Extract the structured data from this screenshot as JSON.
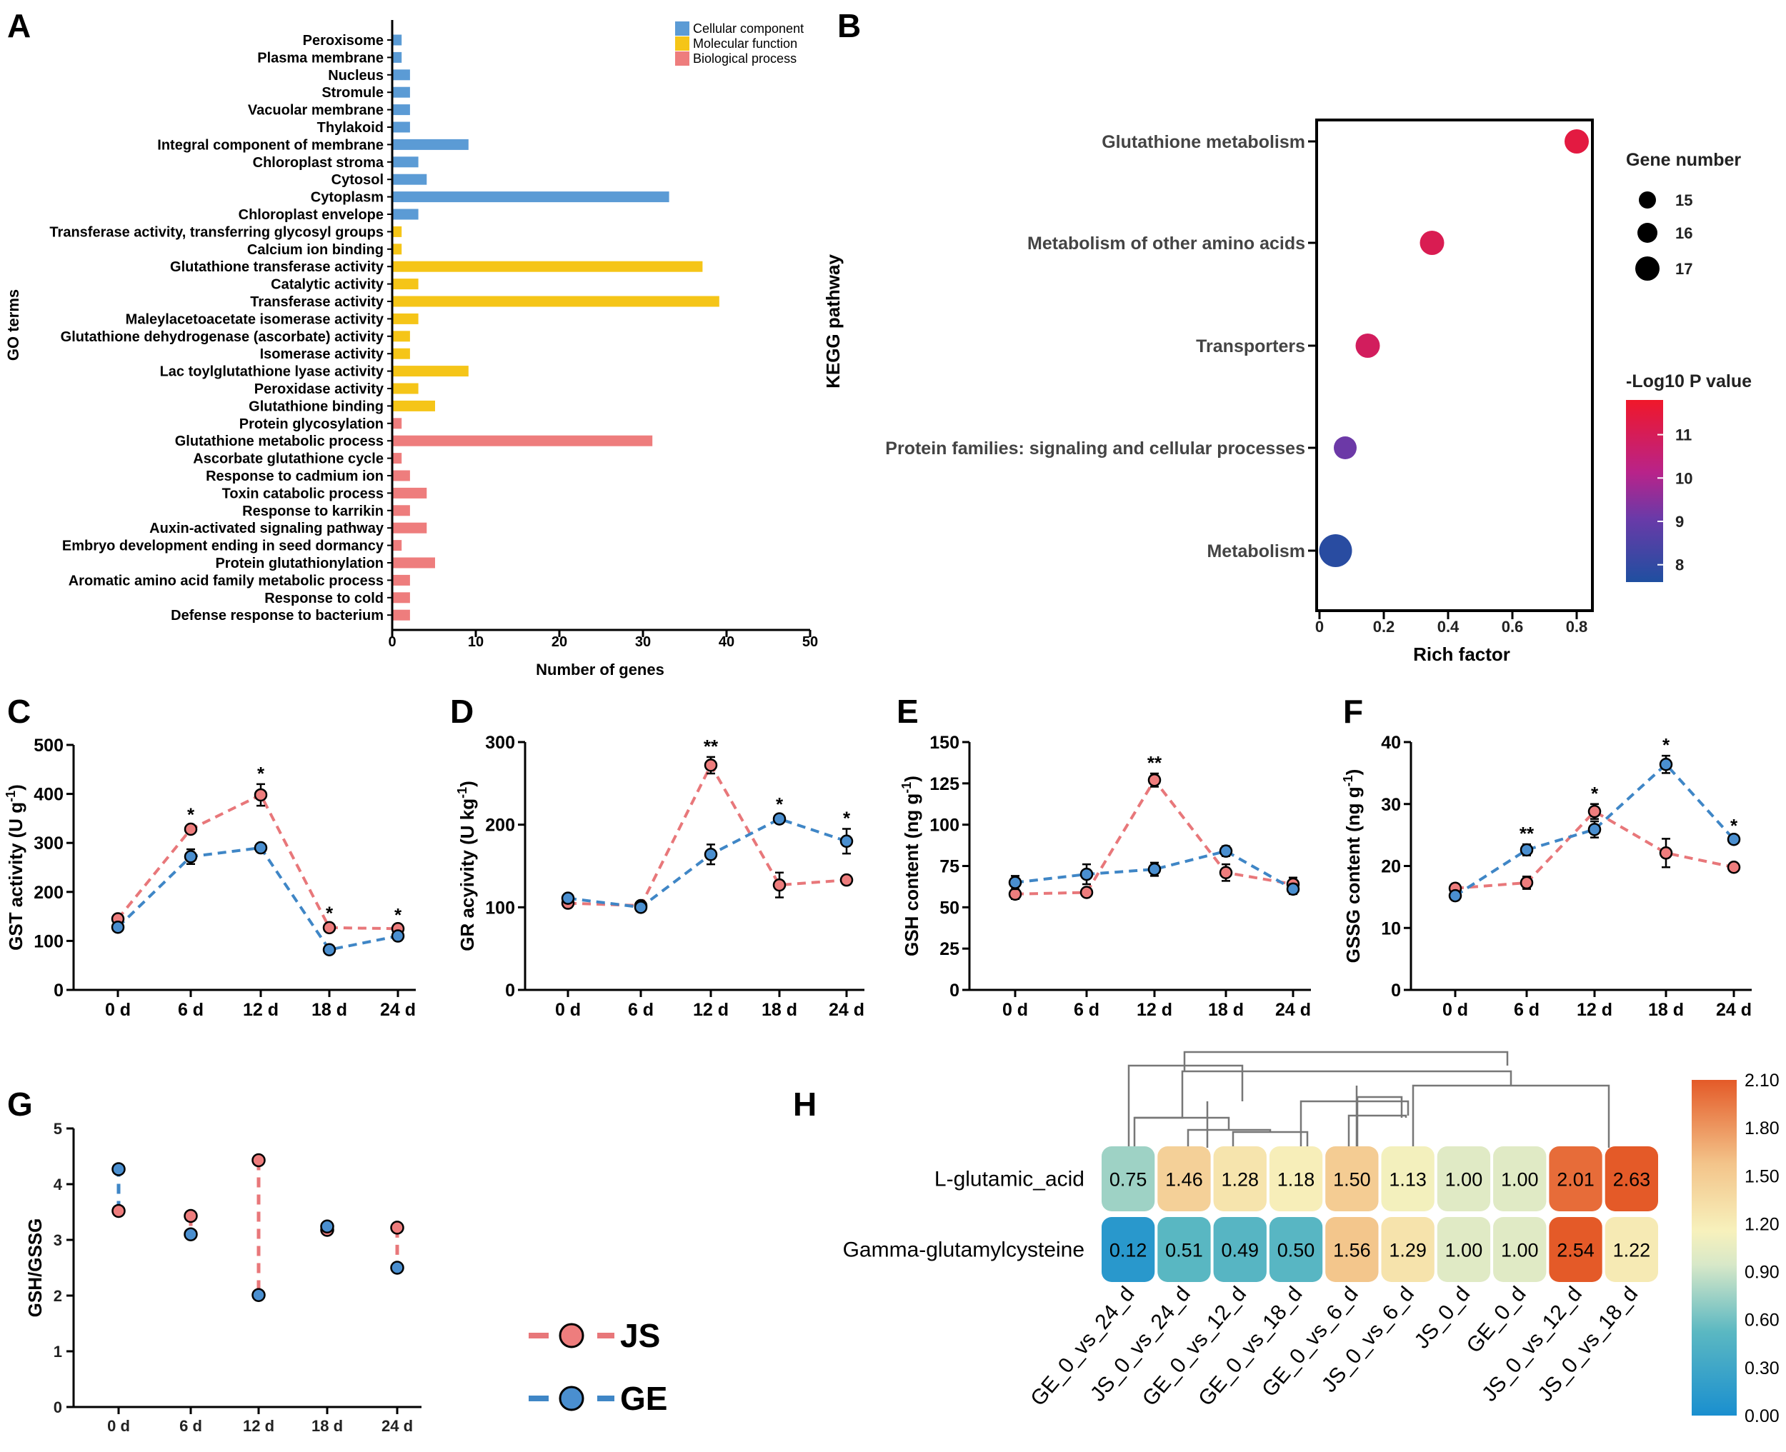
{
  "panel_labels": [
    "A",
    "B",
    "C",
    "D",
    "E",
    "F",
    "G",
    "H"
  ],
  "chart_data": [
    {
      "panel": "A",
      "type": "bar",
      "orientation": "horizontal",
      "xlabel": "Number of genes",
      "ylabel": "GO terms",
      "xlim": [
        0,
        50
      ],
      "xticks": [
        "0",
        "10",
        "20",
        "30",
        "40",
        "50"
      ],
      "legend": {
        "placement": "top-right",
        "entries": [
          {
            "name": "Cellular component",
            "color": "#5b9bd5"
          },
          {
            "name": "Molecular function",
            "color": "#f5c518"
          },
          {
            "name": "Biological process",
            "color": "#ee7d7d"
          }
        ]
      },
      "categories": [
        {
          "term": "Peroxisome",
          "value": 1,
          "group": 0
        },
        {
          "term": "Plasma membrane",
          "value": 1,
          "group": 0
        },
        {
          "term": "Nucleus",
          "value": 2,
          "group": 0
        },
        {
          "term": "Stromule",
          "value": 2,
          "group": 0
        },
        {
          "term": "Vacuolar membrane",
          "value": 2,
          "group": 0
        },
        {
          "term": "Thylakoid",
          "value": 2,
          "group": 0
        },
        {
          "term": "Integral component of membrane",
          "value": 9,
          "group": 0
        },
        {
          "term": "Chloroplast stroma",
          "value": 3,
          "group": 0
        },
        {
          "term": "Cytosol",
          "value": 4,
          "group": 0
        },
        {
          "term": "Cytoplasm",
          "value": 33,
          "group": 0
        },
        {
          "term": "Chloroplast envelope",
          "value": 3,
          "group": 0
        },
        {
          "term": "Transferase activity, transferring glycosyl groups",
          "value": 1,
          "group": 1
        },
        {
          "term": "Calcium ion binding",
          "value": 1,
          "group": 1
        },
        {
          "term": "Glutathione transferase activity",
          "value": 37,
          "group": 1
        },
        {
          "term": "Catalytic activity",
          "value": 3,
          "group": 1
        },
        {
          "term": "Transferase activity",
          "value": 39,
          "group": 1
        },
        {
          "term": "Maleylacetoacetate isomerase activity",
          "value": 3,
          "group": 1
        },
        {
          "term": "Glutathione dehydrogenase (ascorbate) activity",
          "value": 2,
          "group": 1
        },
        {
          "term": "Isomerase activity",
          "value": 2,
          "group": 1
        },
        {
          "term": "Lac toylglutathione lyase activity",
          "value": 9,
          "group": 1
        },
        {
          "term": "Peroxidase activity",
          "value": 3,
          "group": 1
        },
        {
          "term": "Glutathione binding",
          "value": 5,
          "group": 1
        },
        {
          "term": "Protein glycosylation",
          "value": 1,
          "group": 2
        },
        {
          "term": "Glutathione metabolic process",
          "value": 31,
          "group": 2
        },
        {
          "term": "Ascorbate glutathione cycle",
          "value": 1,
          "group": 2
        },
        {
          "term": "Response to cadmium ion",
          "value": 2,
          "group": 2
        },
        {
          "term": "Toxin catabolic process",
          "value": 4,
          "group": 2
        },
        {
          "term": "Response to karrikin",
          "value": 2,
          "group": 2
        },
        {
          "term": "Auxin-activated signaling pathway",
          "value": 4,
          "group": 2
        },
        {
          "term": "Embryo development ending in seed dormancy",
          "value": 1,
          "group": 2
        },
        {
          "term": "Protein glutathionylation",
          "value": 5,
          "group": 2
        },
        {
          "term": "Aromatic amino acid family metabolic process",
          "value": 2,
          "group": 2
        },
        {
          "term": "Response to cold",
          "value": 2,
          "group": 2
        },
        {
          "term": "Defense response to bacterium",
          "value": 2,
          "group": 2
        }
      ]
    },
    {
      "panel": "B",
      "type": "scatter",
      "xlabel": "Rich factor",
      "ylabel": "KEGG pathway",
      "xlim": [
        0,
        0.85
      ],
      "xticks": [
        "0",
        "0.2",
        "0.4",
        "0.6",
        "0.8"
      ],
      "size_legend": {
        "title": "Gene number",
        "values": [
          "15",
          "16",
          "17"
        ]
      },
      "color_legend": {
        "title": "-Log10 P value",
        "ticks": [
          "11",
          "10",
          "9",
          "8"
        ],
        "range": [
          7.6,
          11.8
        ],
        "low_color": "#1f4fa0",
        "mid_color": "#9b2a9b",
        "high_color": "#e8172f"
      },
      "points": [
        {
          "pathway": "Glutathione metabolism",
          "rich_factor": 0.8,
          "gene_number": 16,
          "neglog10p": 11.4
        },
        {
          "pathway": "Metabolism of other amino acids",
          "rich_factor": 0.35,
          "gene_number": 16,
          "neglog10p": 11.1
        },
        {
          "pathway": "Transporters",
          "rich_factor": 0.15,
          "gene_number": 16,
          "neglog10p": 10.9
        },
        {
          "pathway": "Protein families: signaling and cellular processes",
          "rich_factor": 0.08,
          "gene_number": 15,
          "neglog10p": 9.1
        },
        {
          "pathway": "Metabolism",
          "rich_factor": 0.05,
          "gene_number": 17,
          "neglog10p": 7.8
        }
      ]
    },
    {
      "panel": "C",
      "type": "line",
      "ylabel": "GST activity (U g",
      "ylabel_sup": "-1",
      "ylabel_end": ")",
      "ylim": [
        0,
        500
      ],
      "yticks": [
        "0",
        "100",
        "200",
        "300",
        "400",
        "500"
      ],
      "categories": [
        "0 d",
        "6 d",
        "12 d",
        "18 d",
        "24 d"
      ],
      "series": [
        {
          "name": "JS",
          "values": [
            145,
            328,
            398,
            127,
            125
          ],
          "errors": [
            8,
            8,
            22,
            8,
            6
          ]
        },
        {
          "name": "GE",
          "values": [
            128,
            272,
            290,
            82,
            110
          ],
          "errors": [
            8,
            15,
            8,
            8,
            8
          ]
        }
      ],
      "stars": [
        "",
        "*",
        "*",
        "*",
        "*"
      ]
    },
    {
      "panel": "D",
      "type": "line",
      "ylabel": "GR acyivity (U kg",
      "ylabel_sup": "-1",
      "ylabel_end": ")",
      "ylim": [
        0,
        300
      ],
      "yticks": [
        "0",
        "100",
        "200",
        "300"
      ],
      "categories": [
        "0 d",
        "6 d",
        "12 d",
        "18 d",
        "24 d"
      ],
      "series": [
        {
          "name": "JS",
          "values": [
            105,
            102,
            272,
            127,
            133
          ],
          "errors": [
            5,
            5,
            10,
            15,
            4
          ]
        },
        {
          "name": "GE",
          "values": [
            111,
            100,
            164,
            207,
            180
          ],
          "errors": [
            5,
            4,
            12,
            5,
            15
          ]
        }
      ],
      "stars": [
        "",
        "",
        "**",
        "*",
        "*"
      ]
    },
    {
      "panel": "E",
      "type": "line",
      "ylabel": "GSH content (ng g",
      "ylabel_sup": "-1",
      "ylabel_end": ")",
      "ylim": [
        0,
        150
      ],
      "yticks": [
        "0",
        "25",
        "50",
        "75",
        "100",
        "125",
        "150"
      ],
      "categories": [
        "0 d",
        "6 d",
        "12 d",
        "18 d",
        "24 d"
      ],
      "series": [
        {
          "name": "JS",
          "values": [
            58,
            59,
            127,
            71,
            64
          ],
          "errors": [
            3,
            2,
            4,
            5,
            4
          ]
        },
        {
          "name": "GE",
          "values": [
            65,
            70,
            73,
            84,
            61
          ],
          "errors": [
            4,
            6,
            4,
            3,
            3
          ]
        }
      ],
      "stars": [
        "",
        "",
        "**",
        "",
        ""
      ]
    },
    {
      "panel": "F",
      "type": "line",
      "ylabel": "GSSG content (ng g",
      "ylabel_sup": "-1",
      "ylabel_end": ")",
      "ylim": [
        0,
        40
      ],
      "yticks": [
        "0",
        "10",
        "20",
        "30",
        "40"
      ],
      "categories": [
        "0 d",
        "6 d",
        "12 d",
        "18 d",
        "24 d"
      ],
      "series": [
        {
          "name": "JS",
          "values": [
            16.4,
            17.3,
            28.8,
            22.1,
            19.8
          ],
          "errors": [
            0.7,
            1.0,
            1.2,
            2.3,
            0.5
          ]
        },
        {
          "name": "GE",
          "values": [
            15.2,
            22.6,
            25.9,
            36.4,
            24.3
          ],
          "errors": [
            0.7,
            0.9,
            1.3,
            1.4,
            0.5
          ]
        }
      ],
      "stars": [
        "",
        "**",
        "*",
        "*",
        "*"
      ]
    },
    {
      "panel": "G",
      "type": "scatter",
      "ylabel": "GSH/GSSG",
      "ylim": [
        0,
        5
      ],
      "yticks": [
        "0",
        "1",
        "2",
        "3",
        "4",
        "5"
      ],
      "categories": [
        "0 d",
        "6 d",
        "12 d",
        "18 d",
        "24 d"
      ],
      "series": [
        {
          "name": "JS",
          "values": [
            3.52,
            3.43,
            4.43,
            3.18,
            3.22
          ]
        },
        {
          "name": "GE",
          "values": [
            4.27,
            3.1,
            2.01,
            3.24,
            2.5
          ]
        }
      ],
      "legend": {
        "placement": "right",
        "entries": [
          "JS",
          "GE"
        ]
      }
    },
    {
      "panel": "H",
      "type": "heatmap",
      "rows": [
        "L-glutamic_acid",
        "Gamma-glutamylcysteine"
      ],
      "columns": [
        "GE_0_vs_24_d",
        "JS_0_vs_24_d",
        "GE_0_vs_12_d",
        "GE_0_vs_18_d",
        "GE_0_vs_6_d",
        "JS_0_vs_6_d",
        "JS_0_d",
        "GE_0_d",
        "JS_0_vs_12_d",
        "JS_0_vs_18_d"
      ],
      "values": [
        [
          "0.75",
          "1.46",
          "1.28",
          "1.18",
          "1.50",
          "1.13",
          "1.00",
          "1.00",
          "2.01",
          "2.63"
        ],
        [
          "0.12",
          "0.51",
          "0.49",
          "0.50",
          "1.56",
          "1.29",
          "1.00",
          "1.00",
          "2.54",
          "1.22"
        ]
      ],
      "colorbar": {
        "ticks": [
          "2.10",
          "1.80",
          "1.50",
          "1.20",
          "0.90",
          "0.60",
          "0.30",
          "0.00"
        ],
        "min": 0,
        "max": 2.1
      }
    }
  ],
  "colors": {
    "js": "#ee7d7d",
    "ge": "#4a8fd0",
    "js_line": "#e8777a",
    "ge_line": "#3f86c6"
  }
}
